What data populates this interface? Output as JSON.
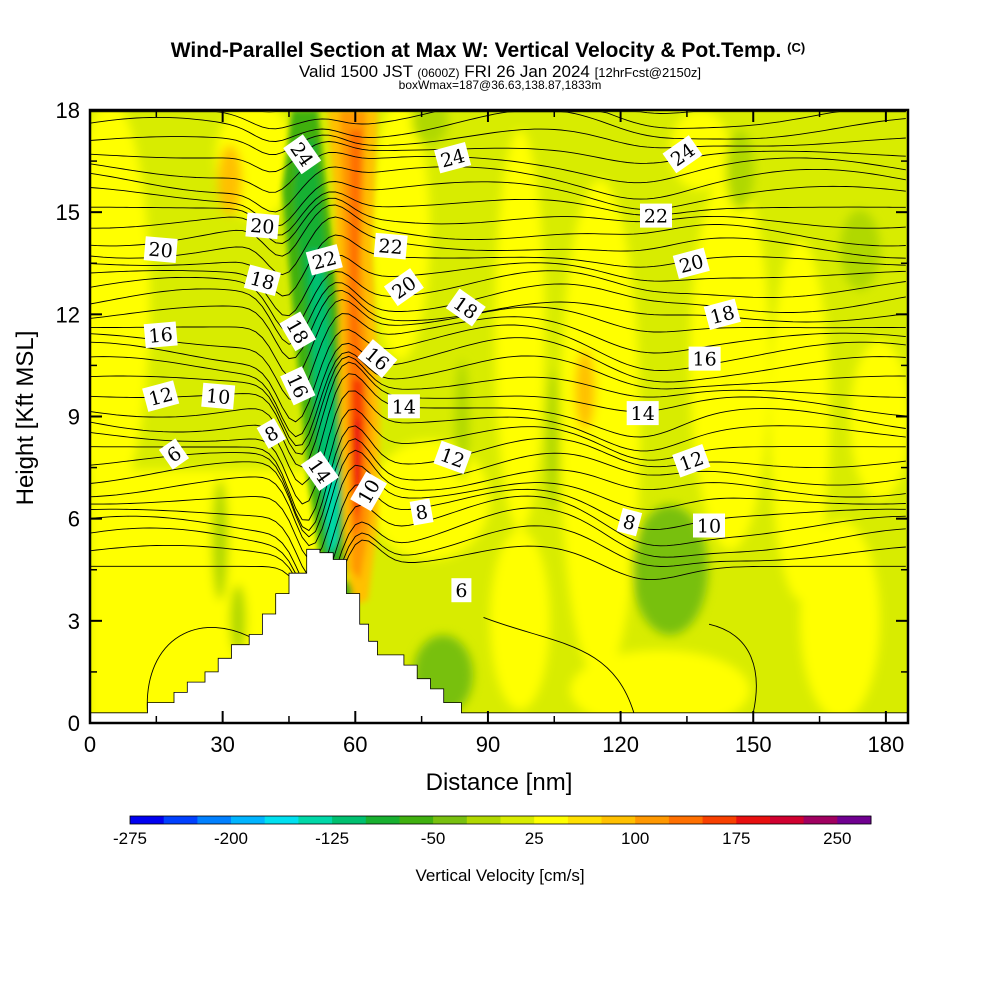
{
  "chart_data": {
    "type": "heatmap",
    "title": "Wind-Parallel Section at Max W: Vertical Velocity & Pot.Temp.",
    "title_mark": "(C)",
    "subtitle_parts": [
      "Valid 1500 JST",
      "(0600Z)",
      "FRI 26 Jan 2024",
      "[12hrFcst@2150z]"
    ],
    "subtitle2": "boxWmax=187@36.63,138.87,1833m",
    "xlabel": "Distance [nm]",
    "ylabel": "Height [Kft MSL]",
    "xlim": [
      0,
      185
    ],
    "ylim": [
      0,
      18
    ],
    "x_ticks": [
      "0",
      "30",
      "60",
      "90",
      "120",
      "150",
      "180"
    ],
    "y_ticks": [
      "0",
      "3",
      "6",
      "9",
      "12",
      "15",
      "18"
    ],
    "colorbar": {
      "label": "Vertical Velocity [cm/s]",
      "tick_labels": [
        "-275",
        "-200",
        "-125",
        "-50",
        "25",
        "100",
        "175",
        "250"
      ],
      "levels": [
        -275,
        -250,
        -225,
        -200,
        -175,
        -150,
        -125,
        -100,
        -75,
        -50,
        -25,
        0,
        25,
        50,
        75,
        100,
        125,
        150,
        175,
        200,
        225,
        250,
        275
      ],
      "colors": [
        "#0000f0",
        "#0040ff",
        "#0080ff",
        "#00b4ff",
        "#00e0f0",
        "#00d8a8",
        "#00c070",
        "#18b030",
        "#40b010",
        "#78c010",
        "#b0d800",
        "#d8ec00",
        "#ffff00",
        "#ffe000",
        "#ffc000",
        "#ff9800",
        "#ff7000",
        "#f84000",
        "#e81010",
        "#d00030",
        "#a00060",
        "#700090"
      ]
    },
    "terrain_profile": [
      [
        0,
        0.3
      ],
      [
        13,
        0.3
      ],
      [
        13,
        0.6
      ],
      [
        19,
        0.6
      ],
      [
        19,
        0.9
      ],
      [
        22,
        0.9
      ],
      [
        22,
        1.2
      ],
      [
        26,
        1.2
      ],
      [
        26,
        1.5
      ],
      [
        29,
        1.5
      ],
      [
        29,
        1.9
      ],
      [
        32,
        1.9
      ],
      [
        32,
        2.3
      ],
      [
        36,
        2.3
      ],
      [
        36,
        2.6
      ],
      [
        39,
        2.6
      ],
      [
        39,
        3.2
      ],
      [
        42,
        3.2
      ],
      [
        42,
        3.8
      ],
      [
        45,
        3.8
      ],
      [
        45,
        4.4
      ],
      [
        49,
        4.4
      ],
      [
        49,
        5.1
      ],
      [
        52,
        5.1
      ],
      [
        52,
        5.0
      ],
      [
        55,
        5.0
      ],
      [
        55,
        4.8
      ],
      [
        58,
        4.8
      ],
      [
        58,
        3.8
      ],
      [
        61,
        3.8
      ],
      [
        61,
        2.9
      ],
      [
        63,
        2.9
      ],
      [
        63,
        2.4
      ],
      [
        65,
        2.4
      ],
      [
        65,
        2.0
      ],
      [
        71,
        2.0
      ],
      [
        71,
        1.7
      ],
      [
        74,
        1.7
      ],
      [
        74,
        1.3
      ],
      [
        77,
        1.3
      ],
      [
        77,
        1.0
      ],
      [
        80,
        1.0
      ],
      [
        80,
        0.6
      ],
      [
        84,
        0.6
      ],
      [
        84,
        0.3
      ],
      [
        185,
        0.3
      ]
    ],
    "contour_labels": [
      {
        "text": "24",
        "x": 48,
        "y": 16.7,
        "angle": 55
      },
      {
        "text": "24",
        "x": 82,
        "y": 16.6,
        "angle": -15
      },
      {
        "text": "24",
        "x": 134,
        "y": 16.7,
        "angle": -35
      },
      {
        "text": "22",
        "x": 128,
        "y": 14.9,
        "angle": 0
      },
      {
        "text": "20",
        "x": 16,
        "y": 13.9,
        "angle": 5
      },
      {
        "text": "20",
        "x": 39,
        "y": 14.6,
        "angle": 5
      },
      {
        "text": "22",
        "x": 53,
        "y": 13.6,
        "angle": -15
      },
      {
        "text": "22",
        "x": 68,
        "y": 14.0,
        "angle": 5
      },
      {
        "text": "20",
        "x": 71,
        "y": 12.8,
        "angle": -35
      },
      {
        "text": "20",
        "x": 136,
        "y": 13.5,
        "angle": -15
      },
      {
        "text": "18",
        "x": 39,
        "y": 13.0,
        "angle": 15
      },
      {
        "text": "18",
        "x": 85,
        "y": 12.2,
        "angle": 35
      },
      {
        "text": "18",
        "x": 143,
        "y": 12.0,
        "angle": -15
      },
      {
        "text": "16",
        "x": 16,
        "y": 11.4,
        "angle": -5
      },
      {
        "text": "18",
        "x": 47,
        "y": 11.5,
        "angle": 60
      },
      {
        "text": "16",
        "x": 65,
        "y": 10.7,
        "angle": 40
      },
      {
        "text": "16",
        "x": 139,
        "y": 10.7,
        "angle": 0
      },
      {
        "text": "16",
        "x": 47,
        "y": 9.9,
        "angle": 65
      },
      {
        "text": "12",
        "x": 16,
        "y": 9.6,
        "angle": -15
      },
      {
        "text": "10",
        "x": 29,
        "y": 9.6,
        "angle": 5
      },
      {
        "text": "14",
        "x": 71,
        "y": 9.3,
        "angle": 0
      },
      {
        "text": "14",
        "x": 125,
        "y": 9.1,
        "angle": 0
      },
      {
        "text": "6",
        "x": 19,
        "y": 7.9,
        "angle": -35
      },
      {
        "text": "8",
        "x": 41,
        "y": 8.5,
        "angle": -30
      },
      {
        "text": "12",
        "x": 82,
        "y": 7.8,
        "angle": 20
      },
      {
        "text": "12",
        "x": 136,
        "y": 7.7,
        "angle": -20
      },
      {
        "text": "14",
        "x": 52,
        "y": 7.4,
        "angle": 55
      },
      {
        "text": "10",
        "x": 63,
        "y": 6.8,
        "angle": -60
      },
      {
        "text": "8",
        "x": 75,
        "y": 6.2,
        "angle": -10
      },
      {
        "text": "8",
        "x": 122,
        "y": 5.9,
        "angle": 15
      },
      {
        "text": "10",
        "x": 140,
        "y": 5.8,
        "angle": 0
      },
      {
        "text": "6",
        "x": 84,
        "y": 3.9,
        "angle": 0
      }
    ]
  }
}
